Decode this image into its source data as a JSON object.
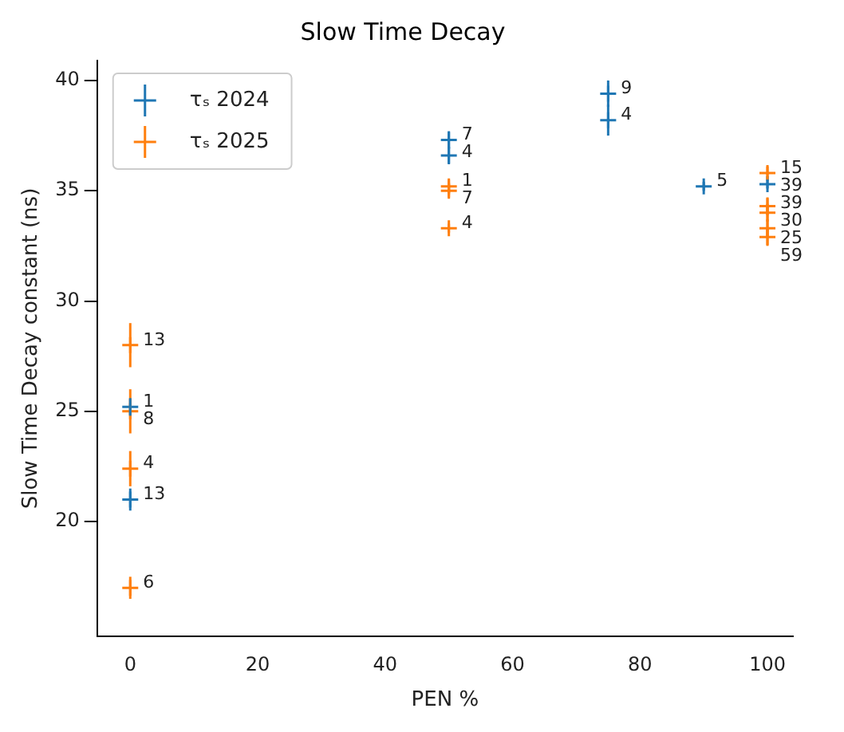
{
  "chart_data": {
    "type": "scatter",
    "title": "Slow Time Decay",
    "xlabel": "PEN %",
    "ylabel": "Slow Time Decay constant (ns)",
    "xlim": [
      -5.2,
      104
    ],
    "ylim": [
      14.8,
      40.9
    ],
    "xticks": [
      0,
      20,
      40,
      60,
      80,
      100
    ],
    "yticks": [
      20,
      25,
      30,
      35,
      40
    ],
    "grid": false,
    "legend": "top left",
    "marker": "cross",
    "series": [
      {
        "name": "τₛ 2024",
        "color": "#1f77b4",
        "x": [
          0,
          0,
          50,
          50,
          75,
          75,
          90,
          100
        ],
        "values": [
          21.0,
          25.2,
          37.3,
          36.6,
          39.4,
          38.2,
          35.2,
          35.3
        ],
        "errors": [
          0.5,
          0.4,
          0.4,
          0.4,
          0.6,
          0.7,
          0.2,
          0.2
        ]
      },
      {
        "name": "τₛ 2025",
        "color": "#ff7f0e",
        "x": [
          0,
          0,
          0,
          0,
          50,
          50,
          50,
          100,
          100,
          100,
          100,
          100
        ],
        "values": [
          28.0,
          25.0,
          22.4,
          17.0,
          35.2,
          35.0,
          33.3,
          35.8,
          34.3,
          34.0,
          33.3,
          32.9
        ],
        "errors": [
          1.0,
          1.0,
          0.8,
          0.5,
          0.3,
          0.3,
          0.2,
          0.3,
          0.4,
          0.4,
          0.4,
          0.4
        ]
      }
    ],
    "annotations": [
      {
        "text": "13",
        "x": 0,
        "y": 21.0
      },
      {
        "text": "1",
        "x": 0,
        "y": 25.2
      },
      {
        "text": "7",
        "x": 50,
        "y": 37.3
      },
      {
        "text": "4",
        "x": 50,
        "y": 36.6
      },
      {
        "text": "9",
        "x": 75,
        "y": 39.4
      },
      {
        "text": "4",
        "x": 75,
        "y": 38.2
      },
      {
        "text": "5",
        "x": 90,
        "y": 35.2
      },
      {
        "text": "39",
        "x": 100,
        "y": 35.3
      },
      {
        "text": "13",
        "x": 0,
        "y": 28.0
      },
      {
        "text": "8",
        "x": 0,
        "y": 25.0
      },
      {
        "text": "4",
        "x": 0,
        "y": 22.4
      },
      {
        "text": "6",
        "x": 0,
        "y": 17.0
      },
      {
        "text": "1",
        "x": 50,
        "y": 35.2
      },
      {
        "text": "7",
        "x": 50,
        "y": 35.0
      },
      {
        "text": "4",
        "x": 50,
        "y": 33.3
      },
      {
        "text": "15",
        "x": 100,
        "y": 35.8
      },
      {
        "text": "39",
        "x": 100,
        "y": 34.3
      },
      {
        "text": "30",
        "x": 100,
        "y": 34.0
      },
      {
        "text": "25",
        "x": 100,
        "y": 33.3
      },
      {
        "text": "59",
        "x": 100,
        "y": 32.9
      }
    ]
  }
}
